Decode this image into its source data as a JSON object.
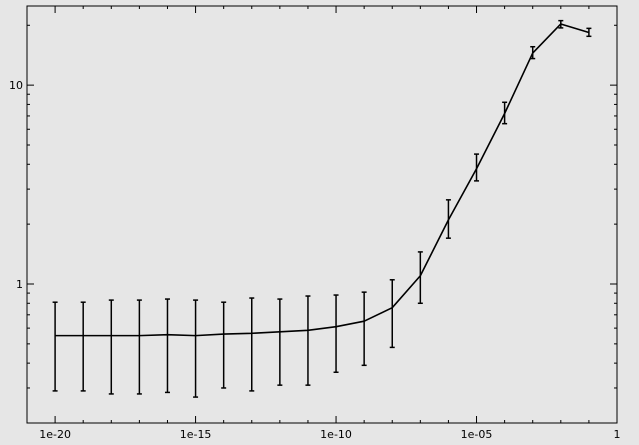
{
  "chart_data": {
    "type": "line",
    "title": "",
    "xlabel": "",
    "ylabel": "",
    "x_scale": "log",
    "y_scale": "log",
    "xlim": [
      1e-21,
      1
    ],
    "ylim": [
      0.2,
      25
    ],
    "grid": false,
    "legend": "none",
    "colors": {
      "background": "#e6e6e6",
      "line": "#000000",
      "axis": "#000000"
    },
    "x_ticks": [
      {
        "value": 1e-20,
        "label": "1e-20"
      },
      {
        "value": 1e-15,
        "label": "1e-15"
      },
      {
        "value": 1e-10,
        "label": "1e-10"
      },
      {
        "value": 1e-05,
        "label": "1e-05"
      },
      {
        "value": 1,
        "label": "1"
      }
    ],
    "y_ticks": [
      {
        "value": 1,
        "label": "1"
      },
      {
        "value": 10,
        "label": "10"
      }
    ],
    "series": [
      {
        "points": [
          {
            "x": 1e-20,
            "y": 0.55,
            "low": 0.29,
            "high": 0.81
          },
          {
            "x": 1e-19,
            "y": 0.55,
            "low": 0.29,
            "high": 0.81
          },
          {
            "x": 1e-18,
            "y": 0.55,
            "low": 0.28,
            "high": 0.83
          },
          {
            "x": 1e-17,
            "y": 0.55,
            "low": 0.28,
            "high": 0.83
          },
          {
            "x": 1e-16,
            "y": 0.556,
            "low": 0.285,
            "high": 0.84
          },
          {
            "x": 1e-15,
            "y": 0.55,
            "low": 0.27,
            "high": 0.83
          },
          {
            "x": 1e-14,
            "y": 0.56,
            "low": 0.3,
            "high": 0.81
          },
          {
            "x": 1e-13,
            "y": 0.565,
            "low": 0.29,
            "high": 0.85
          },
          {
            "x": 1e-12,
            "y": 0.575,
            "low": 0.31,
            "high": 0.84
          },
          {
            "x": 1e-11,
            "y": 0.585,
            "low": 0.31,
            "high": 0.87
          },
          {
            "x": 1e-10,
            "y": 0.61,
            "low": 0.36,
            "high": 0.88
          },
          {
            "x": 1e-09,
            "y": 0.65,
            "low": 0.39,
            "high": 0.91
          },
          {
            "x": 1e-08,
            "y": 0.76,
            "low": 0.48,
            "high": 1.05
          },
          {
            "x": 1e-07,
            "y": 1.1,
            "low": 0.8,
            "high": 1.45
          },
          {
            "x": 1e-06,
            "y": 2.1,
            "low": 1.7,
            "high": 2.65
          },
          {
            "x": 1e-05,
            "y": 3.8,
            "low": 3.3,
            "high": 4.5
          },
          {
            "x": 0.0001,
            "y": 7.2,
            "low": 6.4,
            "high": 8.2
          },
          {
            "x": 0.001,
            "y": 14.5,
            "low": 13.6,
            "high": 15.6
          },
          {
            "x": 0.01,
            "y": 20.3,
            "low": 19.4,
            "high": 21.1
          },
          {
            "x": 0.1,
            "y": 18.4,
            "low": 17.6,
            "high": 19.3
          }
        ]
      }
    ]
  }
}
